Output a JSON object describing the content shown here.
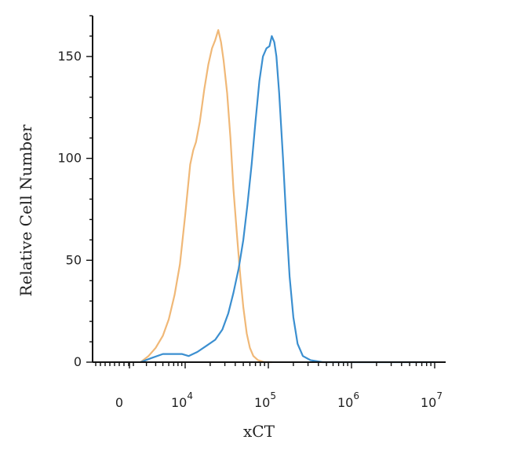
{
  "chart_data": {
    "type": "line",
    "title": "",
    "xlabel": "xCT",
    "ylabel": "Relative Cell Number",
    "x_scale": "biexponential",
    "x_ticks": [
      {
        "value": 0,
        "base": "0",
        "exp": ""
      },
      {
        "value": 10000,
        "base": "10",
        "exp": "4"
      },
      {
        "value": 100000,
        "base": "10",
        "exp": "5"
      },
      {
        "value": 1000000,
        "base": "10",
        "exp": "6"
      },
      {
        "value": 10000000,
        "base": "10",
        "exp": "7"
      }
    ],
    "y_ticks": [
      0,
      50,
      100,
      150
    ],
    "ylim": [
      0,
      170
    ],
    "grid": false,
    "series": [
      {
        "color": "#f0b877",
        "points": [
          [
            2500,
            0
          ],
          [
            3200,
            3
          ],
          [
            4000,
            7
          ],
          [
            5000,
            13
          ],
          [
            6000,
            21
          ],
          [
            7200,
            33
          ],
          [
            8500,
            48
          ],
          [
            10000,
            72
          ],
          [
            11500,
            97
          ],
          [
            12500,
            104
          ],
          [
            13500,
            108
          ],
          [
            15000,
            118
          ],
          [
            17000,
            134
          ],
          [
            19000,
            146
          ],
          [
            21000,
            154
          ],
          [
            23000,
            158
          ],
          [
            25000,
            163
          ],
          [
            27000,
            157
          ],
          [
            29000,
            148
          ],
          [
            32000,
            132
          ],
          [
            35000,
            110
          ],
          [
            38000,
            85
          ],
          [
            42000,
            62
          ],
          [
            46000,
            42
          ],
          [
            50000,
            27
          ],
          [
            55000,
            14
          ],
          [
            60000,
            7
          ],
          [
            66000,
            3
          ],
          [
            75000,
            1
          ],
          [
            90000,
            0
          ],
          [
            110000,
            0
          ]
        ]
      },
      {
        "color": "#3b8fd0",
        "points": [
          [
            2500,
            0
          ],
          [
            3500,
            2
          ],
          [
            5000,
            4
          ],
          [
            7000,
            4
          ],
          [
            9000,
            4
          ],
          [
            11000,
            3
          ],
          [
            14000,
            5
          ],
          [
            18000,
            8
          ],
          [
            23000,
            11
          ],
          [
            28000,
            16
          ],
          [
            33000,
            24
          ],
          [
            38000,
            34
          ],
          [
            44000,
            46
          ],
          [
            50000,
            60
          ],
          [
            56000,
            77
          ],
          [
            63000,
            97
          ],
          [
            70000,
            118
          ],
          [
            78000,
            138
          ],
          [
            86000,
            150
          ],
          [
            95000,
            154
          ],
          [
            103000,
            155
          ],
          [
            110000,
            160
          ],
          [
            118000,
            157
          ],
          [
            125000,
            150
          ],
          [
            135000,
            132
          ],
          [
            150000,
            100
          ],
          [
            165000,
            68
          ],
          [
            180000,
            42
          ],
          [
            200000,
            22
          ],
          [
            225000,
            9
          ],
          [
            260000,
            3
          ],
          [
            320000,
            1
          ],
          [
            450000,
            0
          ],
          [
            1000000,
            0
          ],
          [
            10000000,
            0
          ]
        ]
      }
    ]
  }
}
